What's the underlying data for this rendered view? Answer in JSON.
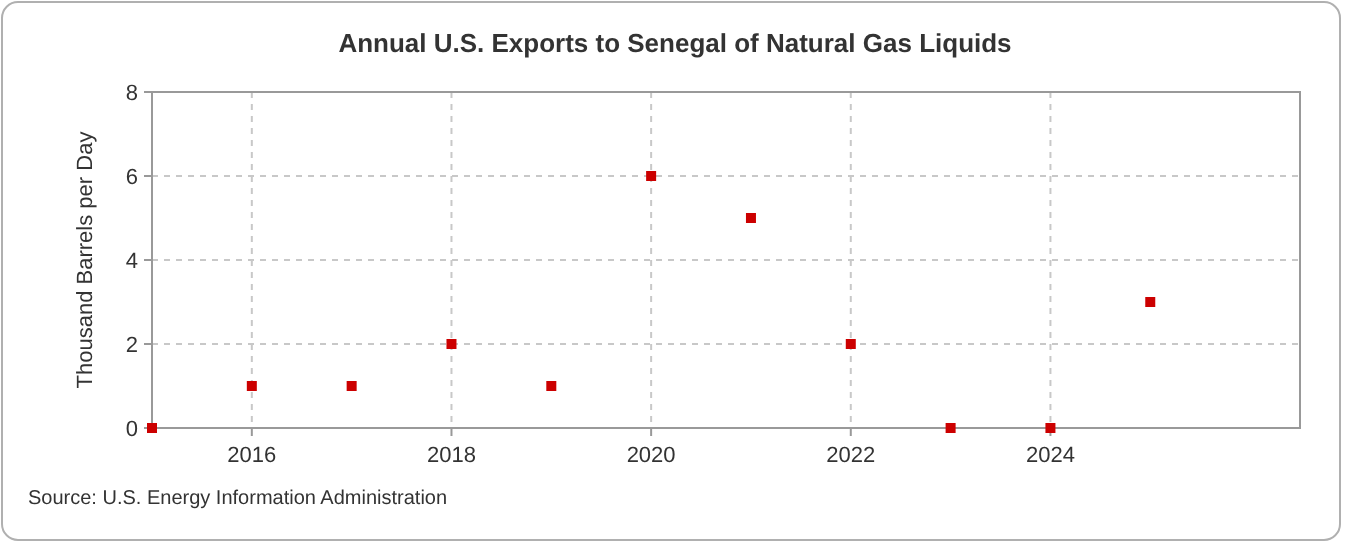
{
  "chart_data": {
    "type": "scatter",
    "title": "Annual U.S. Exports to Senegal of Natural Gas Liquids",
    "ylabel": "Thousand Barrels per Day",
    "x": [
      2015,
      2016,
      2017,
      2018,
      2019,
      2020,
      2021,
      2022,
      2023,
      2024,
      2025
    ],
    "series": [
      {
        "color": "#cc0000",
        "values": [
          0,
          1,
          1,
          2,
          1,
          6,
          5,
          2,
          0,
          0,
          3
        ]
      }
    ],
    "xlim": [
      2015,
      2026.5
    ],
    "xticks": [
      2016,
      2018,
      2020,
      2022,
      2024
    ],
    "ylim": [
      0,
      8
    ],
    "yticks": [
      0,
      2,
      4,
      6,
      8
    ],
    "grid": true,
    "marker": "square",
    "annotations": [
      "Source: U.S. Energy Information Administration"
    ]
  }
}
